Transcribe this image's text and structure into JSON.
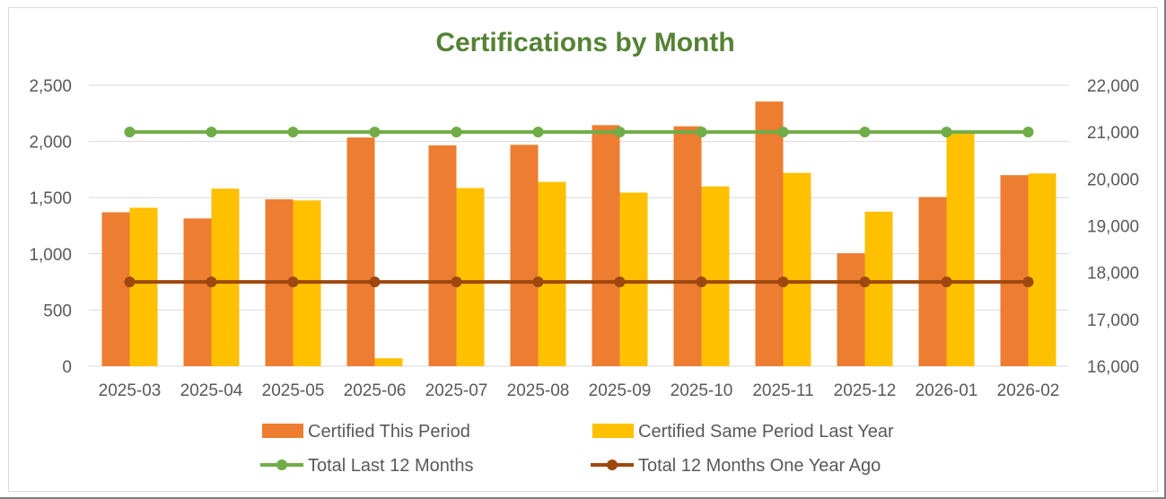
{
  "chart_data": {
    "type": "bar",
    "title": "Certifications by Month",
    "categories": [
      "2025-03",
      "2025-04",
      "2025-05",
      "2025-06",
      "2025-07",
      "2025-08",
      "2025-09",
      "2025-10",
      "2025-11",
      "2025-12",
      "2026-01",
      "2026-02"
    ],
    "series": [
      {
        "name": "Certified This Period",
        "type": "bar",
        "axis": "left",
        "color": "#ED7D31",
        "values": [
          1370,
          1315,
          1485,
          2035,
          1965,
          1970,
          2145,
          2135,
          2355,
          1005,
          1505,
          1700
        ]
      },
      {
        "name": "Certified Same Period Last Year",
        "type": "bar",
        "axis": "left",
        "color": "#FFC000",
        "values": [
          1410,
          1580,
          1475,
          70,
          1585,
          1640,
          1545,
          1600,
          1720,
          1375,
          2070,
          1715
        ]
      },
      {
        "name": "Total Last 12 Months",
        "type": "line",
        "axis": "right",
        "color": "#70AD47",
        "values": [
          21000,
          21000,
          21000,
          21000,
          21000,
          21000,
          21000,
          21000,
          21000,
          21000,
          21000,
          21000
        ]
      },
      {
        "name": "Total 12 Months One Year Ago",
        "type": "line",
        "axis": "right",
        "color": "#9E480E",
        "values": [
          17800,
          17800,
          17800,
          17800,
          17800,
          17800,
          17800,
          17800,
          17800,
          17800,
          17800,
          17800
        ]
      }
    ],
    "y_left": {
      "min": 0,
      "max": 2500,
      "ticks": [
        "0",
        "500",
        "1,000",
        "1,500",
        "2,000",
        "2,500"
      ]
    },
    "y_right": {
      "min": 16000,
      "max": 22000,
      "ticks": [
        "16,000",
        "17,000",
        "18,000",
        "19,000",
        "20,000",
        "21,000",
        "22,000"
      ]
    },
    "grid": true,
    "legend_position": "bottom",
    "colors": {
      "title": "#548235",
      "gridline": "#d9d9d9",
      "axis_text": "#595959"
    }
  }
}
